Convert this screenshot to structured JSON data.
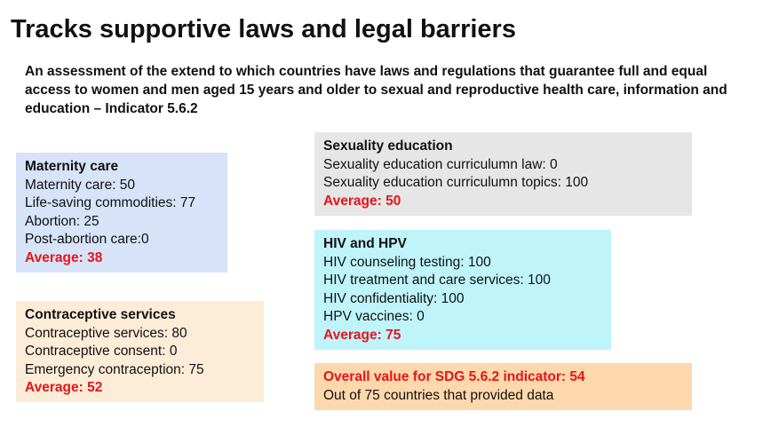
{
  "title": "Tracks supportive laws and legal barriers",
  "subtitle": "An assessment of the extend to which countries have laws and regulations that guarantee full and equal access to women and men aged 15 years and older to sexual and reproductive health care, information and education – Indicator 5.6.2",
  "maternity": {
    "heading": "Maternity care",
    "lines": [
      "Maternity care: 50",
      "Life-saving commodities: 77",
      "Abortion: 25",
      "Post-abortion care:0"
    ],
    "average": "Average: 38"
  },
  "contraceptive": {
    "heading": "Contraceptive services",
    "lines": [
      "Contraceptive services: 80",
      "Contraceptive consent: 0",
      "Emergency contraception: 75"
    ],
    "average": "Average: 52"
  },
  "sexuality": {
    "heading": "Sexuality education",
    "lines": [
      "Sexuality education curriculumn law: 0",
      "Sexuality education curriculumn topics: 100"
    ],
    "average": "Average: 50"
  },
  "hiv": {
    "heading": "HIV and HPV",
    "lines": [
      "HIV counseling testing: 100",
      "HIV treatment and care services: 100",
      "HIV confidentiality: 100",
      "HPV vaccines: 0"
    ],
    "average": "Average: 75"
  },
  "overall": {
    "heading": "Overall value for SDG 5.6.2 indicator: 54",
    "note": "Out of 75 countries that provided data"
  }
}
